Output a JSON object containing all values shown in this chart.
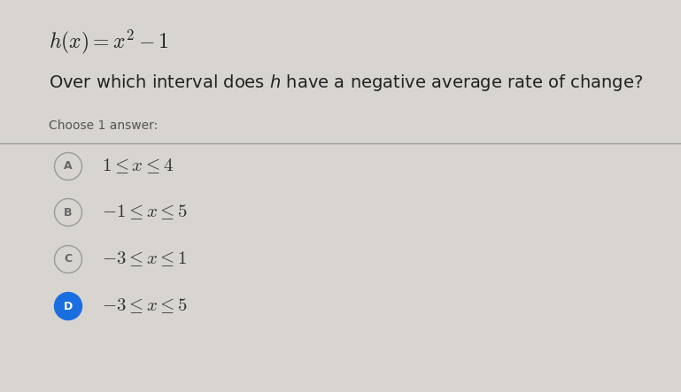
{
  "background_color": "#d8d5d0",
  "title_formula": "$h(x) = x^2 - 1$",
  "question": "Over which interval does $h$ have a negative average rate of change?",
  "choose_text": "Choose 1 answer:",
  "options": [
    {
      "label": "A",
      "text": "$1 \\leq x \\leq 4$",
      "selected": false
    },
    {
      "label": "B",
      "text": "$-1 \\leq x \\leq 5$",
      "selected": false
    },
    {
      "label": "C",
      "text": "$-3 \\leq x \\leq 1$",
      "selected": false
    },
    {
      "label": "D",
      "text": "$-3 \\leq x \\leq 5$",
      "selected": true
    }
  ],
  "circle_unselected_facecolor": "#d8d5d0",
  "circle_unselected_edge": "#999999",
  "circle_selected_color": "#1a6fe0",
  "circle_selected_text_color": "#ffffff",
  "circle_unselected_text_color": "#666666",
  "separator_color": "#999999",
  "text_color": "#333333",
  "formula_color": "#222222",
  "question_text_color": "#222222",
  "choose_text_color": "#555555",
  "font_size_formula": 17,
  "font_size_question": 14,
  "font_size_choose": 10,
  "font_size_option": 15,
  "font_size_label": 9,
  "fig_width": 7.69,
  "fig_height": 4.43,
  "dpi": 100
}
